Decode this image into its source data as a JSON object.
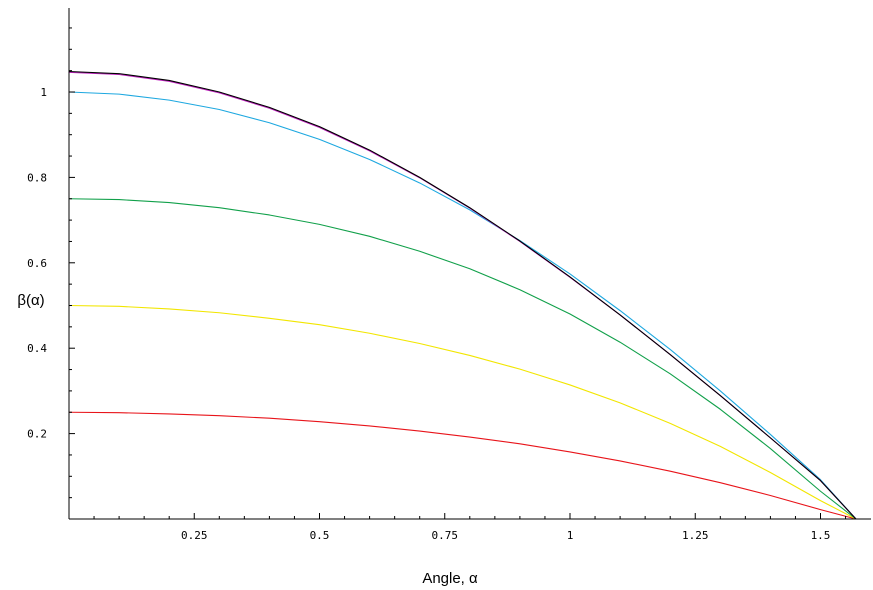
{
  "chart_data": {
    "type": "line",
    "xlabel": "Angle, α",
    "ylabel": "β(α)",
    "xlim": [
      0,
      1.6
    ],
    "ylim": [
      0,
      1.1
    ],
    "x_ticks": [
      0.25,
      0.5,
      0.75,
      1.0,
      1.25,
      1.5
    ],
    "x_tick_labels": [
      "0.25",
      "0.5",
      "0.75",
      "1",
      "1.25",
      "1.5"
    ],
    "y_ticks": [
      0.2,
      0.4,
      0.6,
      0.8,
      1.0
    ],
    "y_tick_labels": [
      "0.2",
      "0.4",
      "0.6",
      "0.8",
      "1"
    ],
    "grid": false,
    "x": [
      0,
      0.1,
      0.2,
      0.3,
      0.4,
      0.5,
      0.6,
      0.7,
      0.8,
      0.9,
      1.0,
      1.1,
      1.2,
      1.3,
      1.4,
      1.5,
      1.5708
    ],
    "series": [
      {
        "color": "#e8141a",
        "values": [
          0.25,
          0.249,
          0.246,
          0.242,
          0.236,
          0.228,
          0.218,
          0.206,
          0.192,
          0.176,
          0.157,
          0.136,
          0.112,
          0.085,
          0.055,
          0.022,
          0.0
        ]
      },
      {
        "color": "#f2e600",
        "values": [
          0.5,
          0.498,
          0.492,
          0.483,
          0.47,
          0.455,
          0.435,
          0.411,
          0.383,
          0.351,
          0.314,
          0.272,
          0.224,
          0.17,
          0.109,
          0.043,
          0.0
        ]
      },
      {
        "color": "#11a04a",
        "values": [
          0.75,
          0.748,
          0.741,
          0.729,
          0.712,
          0.69,
          0.662,
          0.627,
          0.586,
          0.537,
          0.48,
          0.414,
          0.34,
          0.257,
          0.165,
          0.065,
          0.0
        ]
      },
      {
        "color": "#1ea8e0",
        "values": [
          1.0,
          0.995,
          0.981,
          0.959,
          0.928,
          0.889,
          0.842,
          0.787,
          0.724,
          0.652,
          0.574,
          0.488,
          0.397,
          0.3,
          0.198,
          0.092,
          0.0
        ]
      },
      {
        "color": "#c020c0",
        "values": [
          1.046,
          1.041,
          1.025,
          0.998,
          0.962,
          0.917,
          0.862,
          0.799,
          0.728,
          0.65,
          0.566,
          0.478,
          0.385,
          0.289,
          0.19,
          0.09,
          0.0
        ]
      },
      {
        "color": "#000000",
        "values": [
          1.048,
          1.043,
          1.027,
          1.0,
          0.964,
          0.919,
          0.864,
          0.8,
          0.729,
          0.651,
          0.567,
          0.478,
          0.385,
          0.289,
          0.19,
          0.09,
          0.0
        ]
      }
    ]
  }
}
